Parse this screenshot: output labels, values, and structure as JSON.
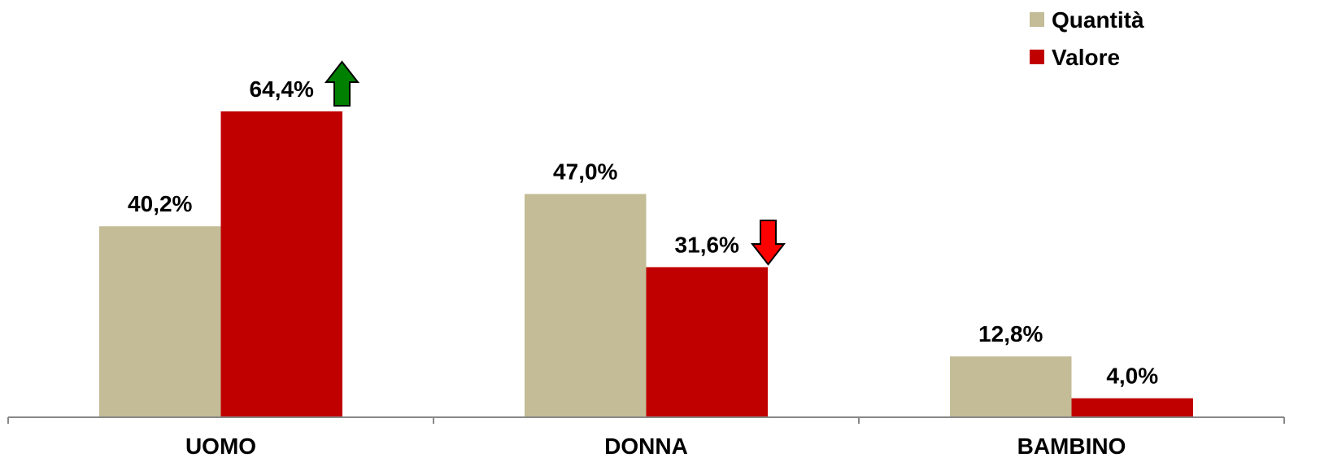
{
  "chart_data": {
    "type": "bar",
    "categories": [
      "UOMO",
      "DONNA",
      "BAMBINO"
    ],
    "series": [
      {
        "name": "Quantità",
        "color": "#c4bc96",
        "values": [
          40.2,
          47.0,
          12.8
        ],
        "value_labels": [
          "40,2%",
          "47,0%",
          "12,8%"
        ]
      },
      {
        "name": "Valore",
        "color": "#c00000",
        "values": [
          64.4,
          31.6,
          4.0
        ],
        "value_labels": [
          "64,4%",
          "31,6%",
          "4,0%"
        ]
      }
    ],
    "legend": "top-right"
  }
}
